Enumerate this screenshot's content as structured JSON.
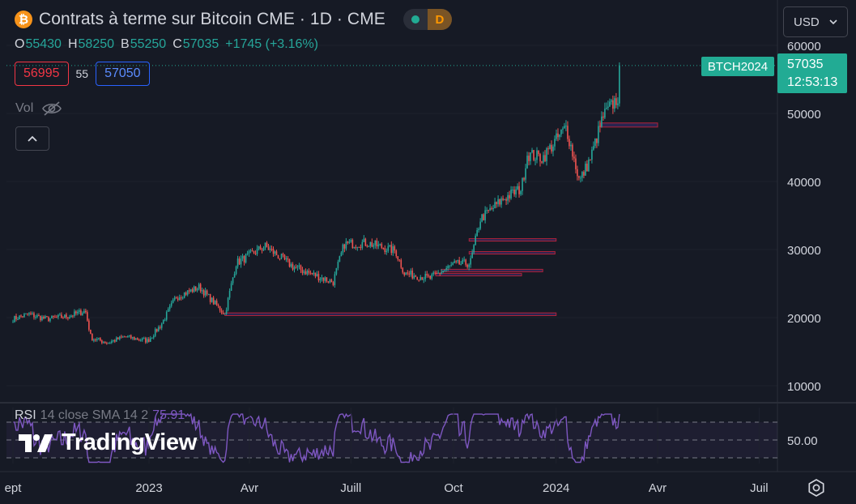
{
  "header": {
    "title": "Contrats à terme sur Bitcoin CME · 1D · CME",
    "logo_glyph": "₿",
    "status_badge": "D",
    "ohlc": {
      "o": "55430",
      "h": "58250",
      "b": "55250",
      "c": "57035",
      "change": "+1745 (+3.16%)"
    }
  },
  "order": {
    "sell": "56995",
    "spread": "55",
    "buy": "57050"
  },
  "vol_label": "Vol",
  "currency": "USD",
  "last_price": {
    "symbol": "BTCH2024",
    "price": "57035",
    "countdown": "12:53:13"
  },
  "colors": {
    "up": "#26a69a",
    "down": "#ef5350",
    "rsi": "#7e57c2",
    "accent": "#22ab94"
  },
  "icons": {
    "logo": "bitcoin-icon",
    "visibility": "eye-off-icon",
    "collapse": "chevron-up-icon",
    "dropdown": "chevron-down-icon",
    "settings": "gear-icon"
  },
  "rsi": {
    "name": "RSI",
    "params": "14 close SMA 14 2",
    "value": "75.91",
    "level_label": "50.00"
  },
  "watermark": "TradingView",
  "chart_data": {
    "type": "candlestick",
    "title": "Contrats à terme sur Bitcoin CME · 1D · CME",
    "y_ticks": [
      10000,
      20000,
      30000,
      40000,
      50000,
      60000
    ],
    "x_ticks": [
      "ept",
      "2023",
      "Avr",
      "Juill",
      "Oct",
      "2024",
      "Avr",
      "Juil"
    ],
    "ylim": [
      6000,
      62000
    ],
    "close_path": [
      [
        "2022-09-01",
        19800
      ],
      [
        "2022-09-15",
        20500
      ],
      [
        "2022-10-01",
        19800
      ],
      [
        "2022-10-20",
        20200
      ],
      [
        "2022-11-05",
        21000
      ],
      [
        "2022-11-10",
        17000
      ],
      [
        "2022-11-25",
        16300
      ],
      [
        "2022-12-10",
        17200
      ],
      [
        "2022-12-31",
        16600
      ],
      [
        "2023-01-12",
        19000
      ],
      [
        "2023-01-25",
        23000
      ],
      [
        "2023-02-15",
        24500
      ],
      [
        "2023-03-10",
        20500
      ],
      [
        "2023-03-20",
        28000
      ],
      [
        "2023-04-15",
        30500
      ],
      [
        "2023-05-10",
        27500
      ],
      [
        "2023-06-15",
        25200
      ],
      [
        "2023-06-25",
        30800
      ],
      [
        "2023-07-15",
        31000
      ],
      [
        "2023-08-10",
        29800
      ],
      [
        "2023-08-18",
        26500
      ],
      [
        "2023-09-10",
        25800
      ],
      [
        "2023-10-01",
        27800
      ],
      [
        "2023-10-16",
        28000
      ],
      [
        "2023-10-25",
        34500
      ],
      [
        "2023-11-15",
        37500
      ],
      [
        "2023-12-01",
        39000
      ],
      [
        "2023-12-06",
        44000
      ],
      [
        "2023-12-20",
        43500
      ],
      [
        "2024-01-10",
        48000
      ],
      [
        "2024-01-22",
        40000
      ],
      [
        "2024-02-01",
        43500
      ],
      [
        "2024-02-12",
        49500
      ],
      [
        "2024-02-26",
        52500
      ],
      [
        "2024-02-28",
        57035
      ]
    ],
    "zones": [
      {
        "from": "2023-03-10",
        "to": "2024-01-01",
        "low": 20300,
        "high": 20700
      },
      {
        "from": "2023-10-15",
        "to": "2024-01-01",
        "low": 31300,
        "high": 31600
      },
      {
        "from": "2023-10-15",
        "to": "2023-12-31",
        "low": 29400,
        "high": 29700
      },
      {
        "from": "2023-09-20",
        "to": "2023-12-20",
        "low": 26800,
        "high": 27100
      },
      {
        "from": "2023-09-15",
        "to": "2023-12-01",
        "low": 26300,
        "high": 26500
      },
      {
        "from": "2024-02-10",
        "to": "2024-04-01",
        "low": 48000,
        "high": 48600
      }
    ],
    "rsi_levels": [
      70,
      50,
      30
    ]
  }
}
